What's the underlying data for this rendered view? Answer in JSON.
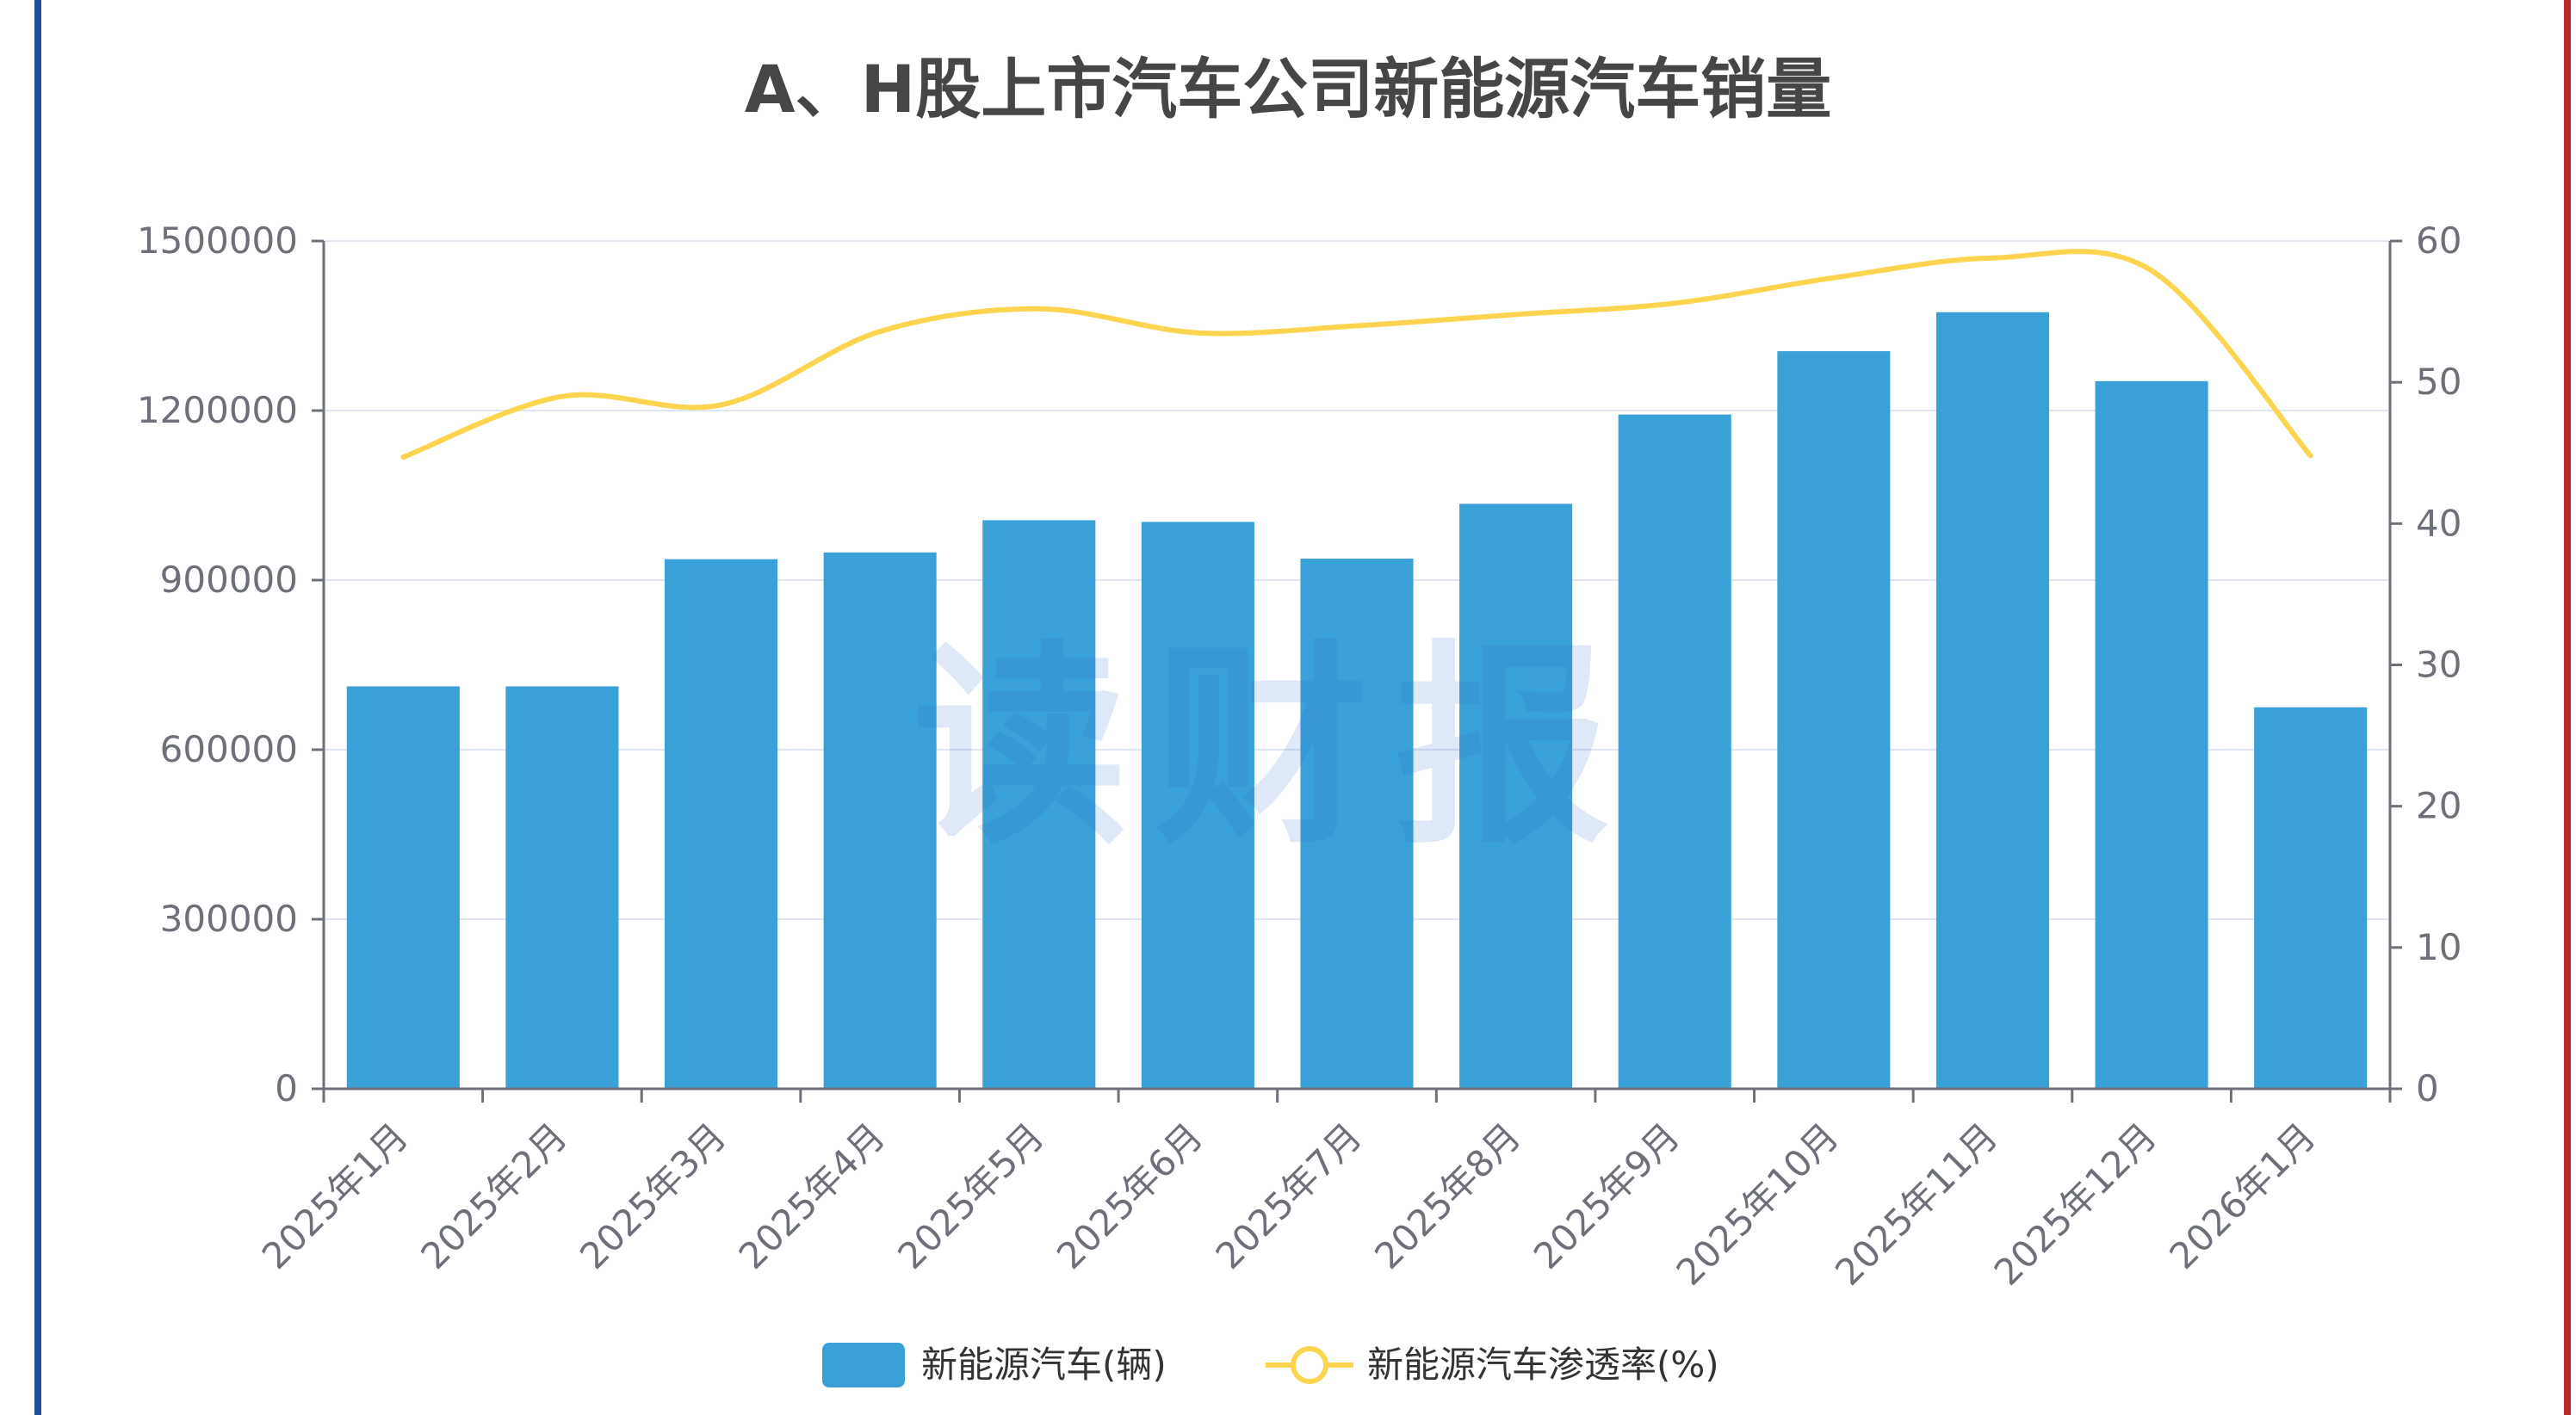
{
  "chart_data": {
    "type": "bar",
    "title": "A、H股上市汽车公司新能源汽车销量",
    "categories": [
      "2025年1月",
      "2025年2月",
      "2025年3月",
      "2025年4月",
      "2025年5月",
      "2025年6月",
      "2025年7月",
      "2025年8月",
      "2025年9月",
      "2025年10月",
      "2025年11月",
      "2025年12月",
      "2026年1月"
    ],
    "series": [
      {
        "name": "新能源汽车(辆)",
        "type": "bar",
        "axis": "left",
        "color": "#3aa0d8",
        "values": [
          712000,
          712000,
          937000,
          949000,
          1006000,
          1003000,
          938000,
          1035000,
          1193000,
          1305000,
          1374000,
          1252000,
          675000
        ]
      },
      {
        "name": "新能源汽车渗透率(%)",
        "type": "line",
        "axis": "right",
        "color": "#fcd450",
        "values": [
          44.7,
          49.0,
          48.4,
          53.6,
          55.2,
          53.5,
          54.0,
          54.8,
          55.6,
          57.4,
          58.8,
          57.9,
          44.8
        ]
      }
    ],
    "y_left": {
      "min": 0,
      "max": 1500000,
      "ticks": [
        "0",
        "300000",
        "600000",
        "900000",
        "1200000",
        "1500000"
      ]
    },
    "y_right": {
      "min": 0,
      "max": 60,
      "ticks": [
        "0",
        "10",
        "20",
        "30",
        "40",
        "50",
        "60"
      ]
    },
    "grid": true,
    "legend": "bottom-center"
  },
  "watermark": "读财报",
  "colors": {
    "gridline": "#e0e6f1",
    "axis": "#6e7079",
    "left_border": "#1f4e9c",
    "right_border": "#c0282d"
  }
}
